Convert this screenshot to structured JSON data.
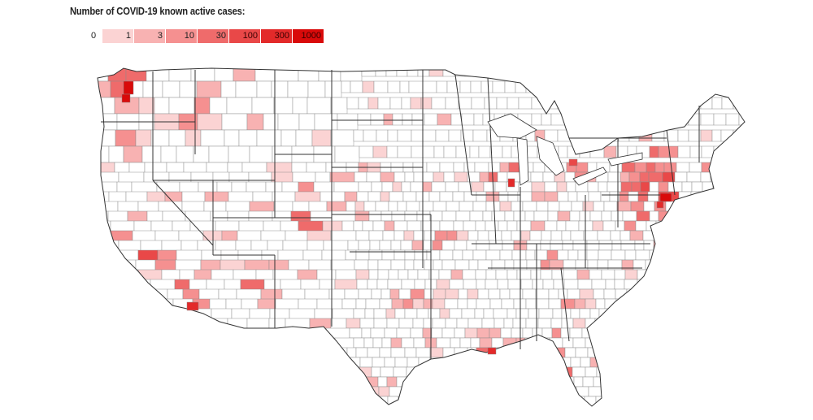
{
  "title": "Number of COVID-19 known active cases:",
  "legend": {
    "zero_label": "0",
    "bins": [
      {
        "label": "1",
        "color": "#fbd3d3"
      },
      {
        "label": "3",
        "color": "#f8b2b2"
      },
      {
        "label": "10",
        "color": "#f59090"
      },
      {
        "label": "30",
        "color": "#ef6b6b"
      },
      {
        "label": "100",
        "color": "#e94848"
      },
      {
        "label": "300",
        "color": "#e32a2a"
      },
      {
        "label": "1000",
        "color": "#d90a0a"
      }
    ]
  },
  "map": {
    "subject": "US counties, contiguous states",
    "fill_empty": "#ffffff",
    "county_border": "#8a8a8a",
    "state_border": "#333333"
  }
}
